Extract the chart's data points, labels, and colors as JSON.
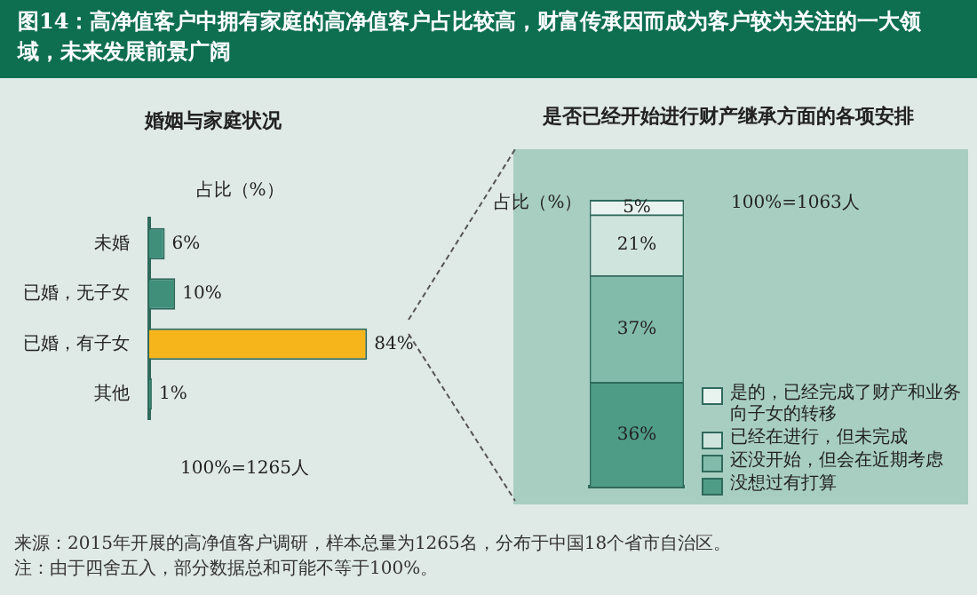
{
  "chart_data": [
    {
      "type": "other",
      "title": "图14：高净值客户中拥有家庭的高净值客户占比较高，财富传承因而成为客户较为关注的一大领域，未来发展前景广阔",
      "annotations": [
        "来源：2015年开展的高净值客户调研，样本总量为1265名，分布于中国18个省市自治区。",
        "注：由于四舍五入，部分数据总和可能不等于100%。"
      ]
    },
    {
      "type": "bar",
      "orientation": "horizontal",
      "title": "婚姻与家庭状况",
      "categories": [
        "未婚",
        "已婚，无子女",
        "已婚，有子女",
        "其他"
      ],
      "values": [
        6,
        10,
        84,
        1
      ],
      "value_labels": [
        "6%",
        "10%",
        "84%",
        "1%"
      ],
      "colors": [
        "#3f8f7b",
        "#3f8f7b",
        "#f6b51b",
        "#3f8f7b"
      ],
      "tick_labels": "y",
      "annotations": [
        "占比（%）",
        "100%=1265人"
      ]
    },
    {
      "type": "bar",
      "stacked": true,
      "title": "是否已经开始进行财产继承方面的各项安排",
      "categories": [
        null
      ],
      "tick_labels": false,
      "legend": "bottom right",
      "annotations": [
        "占比（%）",
        "100%=1063人"
      ],
      "series": [
        {
          "name": "没想过有打算",
          "color": "#4f9c86",
          "values": [
            36
          ],
          "value_labels": [
            "36%"
          ]
        },
        {
          "name": "还没开始，但会在近期考虑",
          "color": "#82bba9",
          "values": [
            37
          ],
          "value_labels": [
            "37%"
          ]
        },
        {
          "name": "已经在进行，但未完成",
          "color": "#cfe4dc",
          "values": [
            21
          ],
          "value_labels": [
            "21%"
          ]
        },
        {
          "name": "是的，已经完成了财产和业务向子女的转移",
          "color": "#e8f3ef",
          "values": [
            5
          ],
          "value_labels": [
            "5%"
          ]
        }
      ]
    }
  ]
}
